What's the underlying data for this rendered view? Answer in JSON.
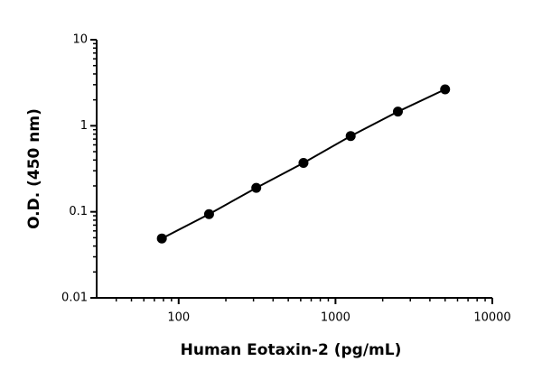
{
  "chart_data": {
    "type": "scatter",
    "x_label": "Human Eotaxin-2 (pg/mL)",
    "y_label": "O.D. (450 nm)",
    "x": [
      78.125,
      156.25,
      312.5,
      625,
      1250,
      2500,
      5000
    ],
    "series": [
      {
        "color": "#000000",
        "values": [
          0.049,
          0.094,
          0.19,
          0.37,
          0.76,
          1.46,
          2.65
        ]
      }
    ],
    "xscale": "log",
    "yscale": "log",
    "xlim": [
      30,
      10000
    ],
    "xticks": [
      100,
      1000,
      10000
    ],
    "ylim": [
      0.01,
      10
    ],
    "yticks": [
      0.01,
      0.1,
      1,
      10
    ],
    "line": true
  }
}
